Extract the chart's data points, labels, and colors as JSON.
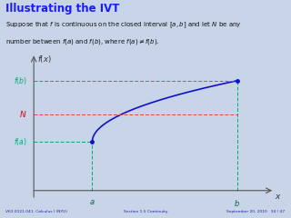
{
  "title": "Illustrating the IVT",
  "subtitle_line1": "Suppose that $f$ is continuous on the closed interval $[a, b]$ and let $N$ be any",
  "subtitle_line2": "number between $f(a)$ and $f(b)$, where $f(a) \\neq f(b)$.",
  "bg_color": "#c8d4e8",
  "header_title_color": "#1a1aff",
  "curve_color": "#1010cc",
  "fa_label_color": "#00aa77",
  "fb_label_color": "#00aa77",
  "N_label_color": "#dd0000",
  "N_line_color": "#dd4444",
  "fb_line_color": "#00aa77",
  "fa_line_color": "#00aa77",
  "footer_text_left": "V63.0121.041, Calculus I (NYU)",
  "footer_text_mid": "Section 1.5 Continuity",
  "footer_text_right": "September 20, 2010   34 / 47",
  "footer_color": "#2222aa",
  "footer_bg": "#9aaac8",
  "a_val": 0.25,
  "b_val": 0.87,
  "fa_val": 0.32,
  "fb_val": 0.72,
  "N_val": 0.5,
  "xmin": -0.02,
  "xmax": 1.05,
  "ymin": -0.08,
  "ymax": 0.92
}
